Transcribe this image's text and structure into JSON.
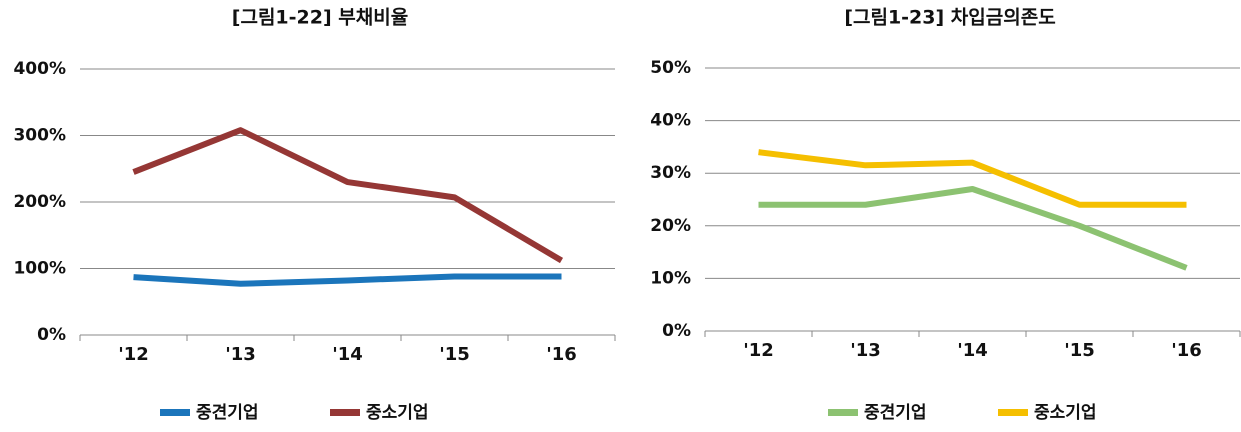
{
  "chart_data": [
    {
      "type": "line",
      "title": "[그림1-22] 부채비율",
      "categories": [
        "'12",
        "'13",
        "'14",
        "'15",
        "'16"
      ],
      "series": [
        {
          "name": "중견기업",
          "color": "#1b75bb",
          "values": [
            87,
            77,
            82,
            88,
            88
          ]
        },
        {
          "name": "중소기업",
          "color": "#953735",
          "values": [
            245,
            308,
            230,
            207,
            112
          ]
        }
      ],
      "ylim": [
        0,
        400
      ],
      "yticks": [
        {
          "value": 0,
          "label": "0%"
        },
        {
          "value": 100,
          "label": "100%"
        },
        {
          "value": 200,
          "label": "200%"
        },
        {
          "value": 300,
          "label": "300%"
        },
        {
          "value": 400,
          "label": "400%"
        }
      ],
      "grid": true
    },
    {
      "type": "line",
      "title": "[그림1-23] 차입금의존도",
      "categories": [
        "'12",
        "'13",
        "'14",
        "'15",
        "'16"
      ],
      "series": [
        {
          "name": "중견기업",
          "color": "#8cc271",
          "values": [
            24,
            24,
            27,
            20,
            12
          ]
        },
        {
          "name": "중소기업",
          "color": "#f5bf00",
          "values": [
            34,
            31.5,
            32,
            24,
            24
          ]
        }
      ],
      "ylim": [
        0,
        50
      ],
      "yticks": [
        {
          "value": 0,
          "label": "0%"
        },
        {
          "value": 10,
          "label": "10%"
        },
        {
          "value": 20,
          "label": "20%"
        },
        {
          "value": 30,
          "label": "30%"
        },
        {
          "value": 40,
          "label": "40%"
        },
        {
          "value": 50,
          "label": "50%"
        }
      ],
      "grid": true
    }
  ]
}
